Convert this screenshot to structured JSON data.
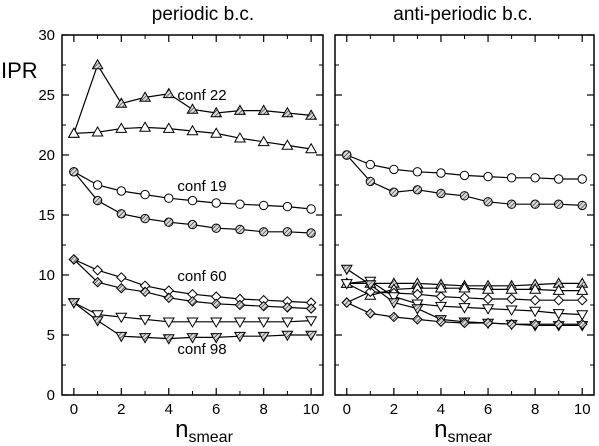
{
  "chart_data": [
    {
      "type": "line",
      "title": "periodic b.c.",
      "ylabel": "IPR",
      "xlabel": "n",
      "xlabel_subscript": "smear",
      "xlim": [
        -0.5,
        10.5
      ],
      "ylim": [
        0,
        30
      ],
      "xticks": [
        "0",
        "2",
        "4",
        "6",
        "8",
        "10"
      ],
      "yticks": [
        "0",
        "5",
        "10",
        "15",
        "20",
        "25",
        "30"
      ],
      "annotations": [
        {
          "text": "conf 22",
          "x": 5.4,
          "y": 24.6
        },
        {
          "text": "conf 19",
          "x": 5.4,
          "y": 17.0
        },
        {
          "text": "conf 60",
          "x": 5.4,
          "y": 9.5
        },
        {
          "text": "conf 98",
          "x": 5.4,
          "y": 3.4
        }
      ],
      "series": [
        {
          "marker": "triangle-up",
          "fill": "hatched",
          "x": [
            0,
            1,
            2,
            3,
            4,
            5,
            6,
            7,
            8,
            9,
            10
          ],
          "values": [
            21.8,
            27.5,
            24.3,
            24.8,
            25.1,
            23.8,
            23.5,
            23.7,
            23.7,
            23.5,
            23.3
          ]
        },
        {
          "marker": "triangle-up",
          "fill": "open",
          "x": [
            0,
            1,
            2,
            3,
            4,
            5,
            6,
            7,
            8,
            9,
            10
          ],
          "values": [
            21.8,
            21.9,
            22.2,
            22.3,
            22.2,
            22.0,
            21.8,
            21.4,
            21.1,
            20.8,
            20.5
          ]
        },
        {
          "marker": "circle",
          "fill": "open",
          "x": [
            0,
            1,
            2,
            3,
            4,
            5,
            6,
            7,
            8,
            9,
            10
          ],
          "values": [
            18.6,
            17.5,
            17.0,
            16.7,
            16.4,
            16.2,
            16.0,
            15.9,
            15.8,
            15.7,
            15.5
          ]
        },
        {
          "marker": "circle",
          "fill": "hatched",
          "x": [
            0,
            1,
            2,
            3,
            4,
            5,
            6,
            7,
            8,
            9,
            10
          ],
          "values": [
            18.6,
            16.2,
            15.1,
            14.7,
            14.4,
            14.2,
            13.9,
            13.8,
            13.6,
            13.6,
            13.5
          ]
        },
        {
          "marker": "diamond",
          "fill": "open",
          "x": [
            0,
            1,
            2,
            3,
            4,
            5,
            6,
            7,
            8,
            9,
            10
          ],
          "values": [
            11.3,
            10.4,
            9.8,
            9.1,
            8.7,
            8.4,
            8.2,
            8.0,
            7.9,
            7.8,
            7.7
          ]
        },
        {
          "marker": "diamond",
          "fill": "hatched",
          "x": [
            0,
            1,
            2,
            3,
            4,
            5,
            6,
            7,
            8,
            9,
            10
          ],
          "values": [
            11.3,
            9.4,
            8.9,
            8.6,
            8.1,
            7.8,
            7.6,
            7.5,
            7.4,
            7.3,
            7.2
          ]
        },
        {
          "marker": "triangle-down",
          "fill": "open",
          "x": [
            0,
            1,
            2,
            3,
            4,
            5,
            6,
            7,
            8,
            9,
            10
          ],
          "values": [
            7.7,
            6.7,
            6.5,
            6.3,
            6.1,
            6.1,
            6.1,
            6.1,
            6.1,
            6.1,
            6.2
          ]
        },
        {
          "marker": "triangle-down",
          "fill": "hatched",
          "x": [
            0,
            1,
            2,
            3,
            4,
            5,
            6,
            7,
            8,
            9,
            10
          ],
          "values": [
            7.7,
            6.2,
            4.9,
            4.8,
            4.7,
            4.8,
            4.8,
            4.9,
            4.9,
            5.0,
            5.0
          ]
        }
      ]
    },
    {
      "type": "line",
      "title": "anti-periodic b.c.",
      "xlabel": "n",
      "xlabel_subscript": "smear",
      "xlim": [
        -0.5,
        10.5
      ],
      "ylim": [
        0,
        30
      ],
      "xticks": [
        "0",
        "2",
        "4",
        "6",
        "8",
        "10"
      ],
      "series": [
        {
          "marker": "circle",
          "fill": "open",
          "x": [
            0,
            1,
            2,
            3,
            4,
            5,
            6,
            7,
            8,
            9,
            10
          ],
          "values": [
            20.0,
            19.2,
            18.8,
            18.6,
            18.5,
            18.3,
            18.2,
            18.1,
            18.1,
            18.0,
            18.0
          ]
        },
        {
          "marker": "circle",
          "fill": "hatched",
          "x": [
            0,
            1,
            2,
            3,
            4,
            5,
            6,
            7,
            8,
            9,
            10
          ],
          "values": [
            20.0,
            17.8,
            16.9,
            17.1,
            16.8,
            16.6,
            16.1,
            15.9,
            15.9,
            15.9,
            15.8
          ]
        },
        {
          "marker": "triangle-up",
          "fill": "hatched",
          "x": [
            0,
            1,
            2,
            3,
            4,
            5,
            6,
            7,
            8,
            9,
            10
          ],
          "values": [
            9.3,
            9.3,
            9.3,
            9.3,
            9.2,
            9.1,
            9.1,
            9.1,
            9.2,
            9.3,
            9.3
          ]
        },
        {
          "marker": "triangle-up",
          "fill": "open",
          "x": [
            0,
            1,
            2,
            3,
            4,
            5,
            6,
            7,
            8,
            9,
            10
          ],
          "values": [
            9.3,
            8.3,
            8.8,
            8.9,
            8.9,
            8.9,
            8.8,
            8.8,
            8.8,
            8.7,
            8.7
          ]
        },
        {
          "marker": "diamond",
          "fill": "open",
          "x": [
            0,
            1,
            2,
            3,
            4,
            5,
            6,
            7,
            8,
            9,
            10
          ],
          "values": [
            7.7,
            8.6,
            8.5,
            8.4,
            8.2,
            8.1,
            8.0,
            8.0,
            7.9,
            7.9,
            7.9
          ]
        },
        {
          "marker": "triangle-down",
          "fill": "open",
          "x": [
            0,
            1,
            2,
            3,
            4,
            5,
            6,
            7,
            8,
            9,
            10
          ],
          "values": [
            9.3,
            9.5,
            8.2,
            7.6,
            7.4,
            7.3,
            7.2,
            7.1,
            7.0,
            6.8,
            6.7
          ]
        },
        {
          "marker": "triangle-down",
          "fill": "hatched",
          "x": [
            0,
            1,
            2,
            3,
            4,
            5,
            6,
            7,
            8,
            9,
            10
          ],
          "values": [
            10.5,
            9.2,
            7.7,
            7.2,
            6.3,
            6.1,
            6.0,
            5.9,
            5.8,
            5.8,
            5.8
          ]
        },
        {
          "marker": "diamond",
          "fill": "hatched",
          "x": [
            0,
            1,
            2,
            3,
            4,
            5,
            6,
            7,
            8,
            9,
            10
          ],
          "values": [
            7.7,
            6.8,
            6.5,
            6.3,
            6.1,
            6.0,
            6.0,
            5.9,
            5.9,
            5.9,
            5.9
          ]
        }
      ]
    }
  ]
}
